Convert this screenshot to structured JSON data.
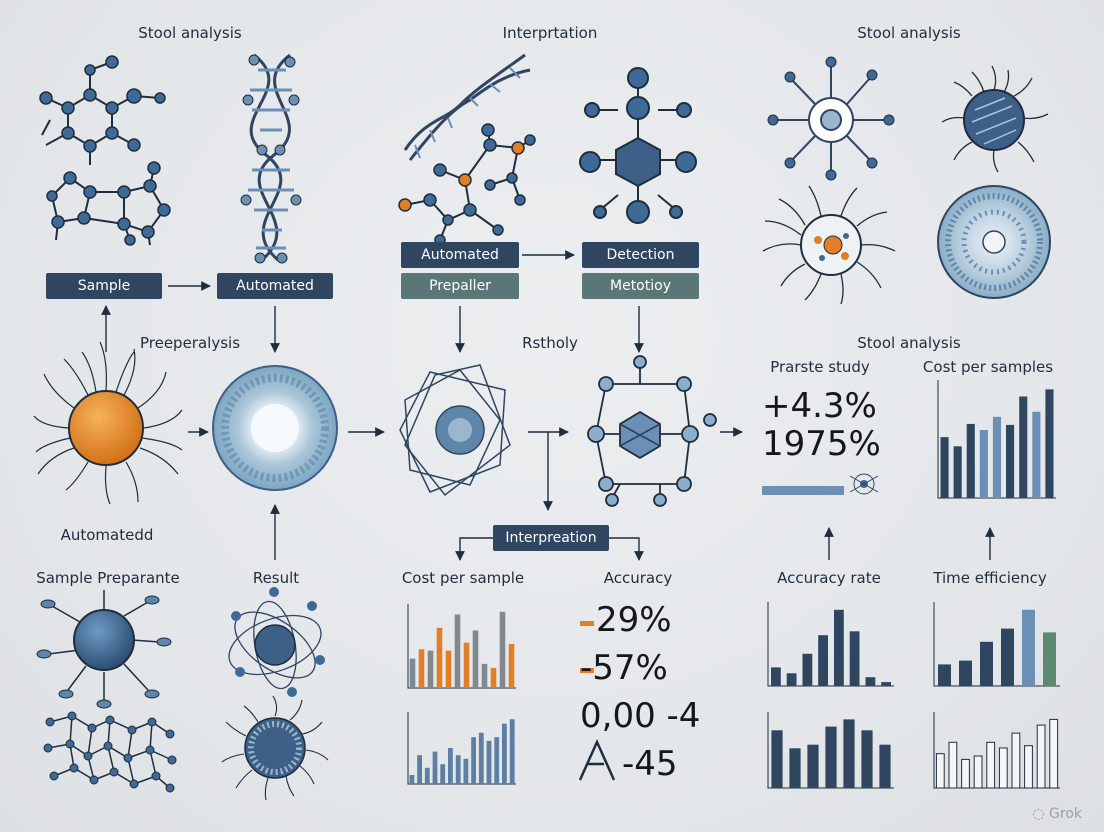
{
  "labels": {
    "stool_analysis_1": "Stool analysis",
    "interpretation_top": "Interprtation",
    "stool_analysis_2": "Stool analysis",
    "preeperalysis": "Preeperalysis",
    "rstholy": "Rstholy",
    "stool_analysis_3": "Stool analysis",
    "prarste_study": "Prarste study",
    "cost_per_samples": "Cost per samples",
    "automatedd": "Automatedd",
    "sample_preparante": "Sample Preparante",
    "result": "Result",
    "cost_per_sample": "Cost per sample",
    "accuracy": "Accuracy",
    "accuracy_rate": "Accuracy rate",
    "time_efficiency": "Time efficiency"
  },
  "boxes": {
    "sample": "Sample",
    "automated_1": "Automated",
    "automated_2": "Automated",
    "detection": "Detection",
    "prepaller": "Prepaller",
    "metotioy": "Metotioy",
    "interpreation": "Interpreation"
  },
  "stats": {
    "prarste_1": "+4.3%",
    "prarste_2": "1975%",
    "acc_1": "29%",
    "acc_2": "-57%",
    "acc_3": "0,00 -4",
    "acc_4": "-45"
  },
  "watermark": "Grok",
  "colors": {
    "navy": "#2f4560",
    "blue": "#3e5f88",
    "light_blue": "#6b8fb5",
    "orange": "#e07f26",
    "green": "#5a8a70",
    "slate": "#5a7676"
  },
  "chart_data": [
    {
      "type": "bar",
      "title": "Cost per samples",
      "values": [
        60,
        51,
        73,
        67,
        80,
        72,
        100,
        85,
        107
      ],
      "colors": [
        "navy",
        "navy",
        "navy",
        "light",
        "light",
        "navy",
        "navy",
        "light",
        "navy"
      ]
    },
    {
      "type": "bar",
      "title": "Cost per sample",
      "values": [
        22,
        29,
        28,
        45,
        28,
        55,
        34,
        43,
        18,
        15,
        57,
        33
      ],
      "colors": [
        "gray",
        "orange",
        "gray",
        "orange",
        "orange",
        "gray",
        "orange",
        "gray",
        "gray",
        "orange",
        "gray",
        "orange"
      ]
    },
    {
      "type": "bar",
      "values": [
        10,
        32,
        18,
        36,
        22,
        40,
        32,
        28,
        52,
        57,
        48,
        52,
        67,
        72
      ],
      "colors": [
        "slate",
        "slate",
        "slate",
        "slate",
        "slate",
        "slate",
        "slate",
        "slate",
        "slate",
        "slate",
        "slate",
        "slate",
        "slate",
        "slate"
      ]
    },
    {
      "type": "bar",
      "title": "Accuracy rate",
      "values": [
        19,
        13,
        33,
        52,
        78,
        56,
        9,
        4
      ],
      "colors": [
        "navy",
        "navy",
        "navy",
        "navy",
        "navy",
        "navy",
        "navy",
        "navy"
      ]
    },
    {
      "type": "bar",
      "title": "Time efficiency",
      "values": [
        23,
        27,
        47,
        61,
        81,
        57
      ],
      "colors": [
        "navy",
        "navy",
        "navy",
        "navy",
        "light",
        "green"
      ]
    },
    {
      "type": "bar",
      "values": [
        16,
        11,
        12,
        17,
        19,
        16,
        12
      ],
      "colors": [
        "navy",
        "navy",
        "navy",
        "navy",
        "navy",
        "navy",
        "navy"
      ]
    },
    {
      "type": "bar",
      "values": [
        30,
        40,
        25,
        28,
        40,
        35,
        48,
        37,
        55,
        60
      ],
      "colors": [
        "white",
        "white",
        "white",
        "white",
        "white",
        "white",
        "white",
        "white",
        "white",
        "white"
      ]
    }
  ]
}
